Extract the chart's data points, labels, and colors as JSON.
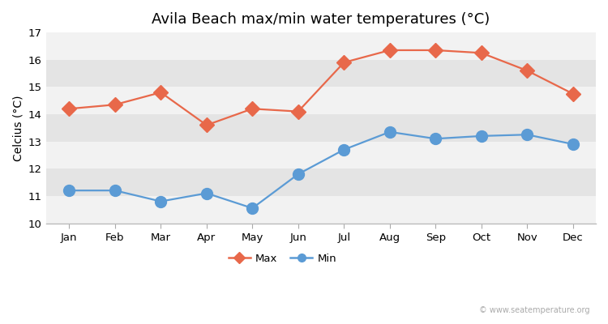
{
  "title": "Avila Beach max/min water temperatures (°C)",
  "ylabel": "Celcius (°C)",
  "months": [
    "Jan",
    "Feb",
    "Mar",
    "Apr",
    "May",
    "Jun",
    "Jul",
    "Aug",
    "Sep",
    "Oct",
    "Nov",
    "Dec"
  ],
  "max_values": [
    14.2,
    14.35,
    14.8,
    13.6,
    14.2,
    14.1,
    15.9,
    16.35,
    16.35,
    16.25,
    15.6,
    14.75
  ],
  "min_values": [
    11.2,
    11.2,
    10.8,
    11.1,
    10.55,
    11.8,
    12.7,
    13.35,
    13.1,
    13.2,
    13.25,
    12.9
  ],
  "max_color": "#e8684a",
  "min_color": "#5b9bd5",
  "fig_bg_color": "#ffffff",
  "band_light": "#f2f2f2",
  "band_dark": "#e4e4e4",
  "ylim": [
    10,
    17
  ],
  "yticks": [
    10,
    11,
    12,
    13,
    14,
    15,
    16,
    17
  ],
  "legend_labels": [
    "Max",
    "Min"
  ],
  "watermark": "© www.seatemperature.org",
  "title_fontsize": 13,
  "axis_fontsize": 10,
  "tick_fontsize": 9.5,
  "marker_size_max": 9,
  "marker_size_min": 10
}
